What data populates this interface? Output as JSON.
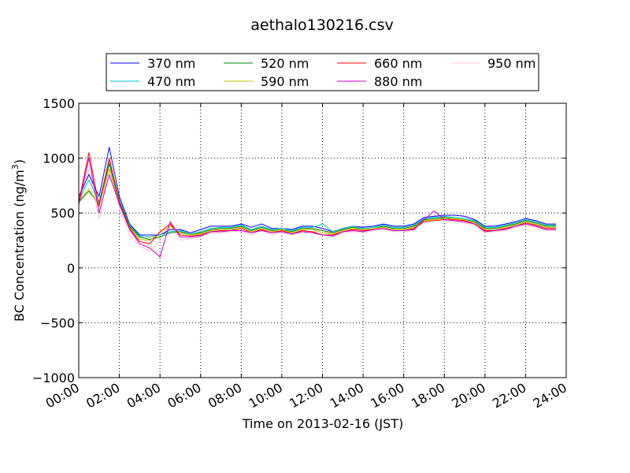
{
  "chart_data": {
    "type": "line",
    "title": "aethalo130216.csv",
    "xlabel": "Time on 2013-02-16 (JST)",
    "ylabel": "BC Concentration (ng/m",
    "ylabel_sup": "3",
    "ylabel_close": ")",
    "xlim": [
      0,
      24
    ],
    "ylim": [
      -1000,
      1500
    ],
    "grid": true,
    "legend_position": "top, above plot",
    "x_ticks": [
      0,
      2,
      4,
      6,
      8,
      10,
      12,
      14,
      16,
      18,
      20,
      22,
      24
    ],
    "x_tick_labels": [
      "00:00",
      "02:00",
      "04:00",
      "06:00",
      "08:00",
      "10:00",
      "12:00",
      "14:00",
      "16:00",
      "18:00",
      "20:00",
      "22:00",
      "24:00"
    ],
    "y_ticks": [
      -1000,
      -500,
      0,
      500,
      1000,
      1500
    ],
    "y_tick_labels": [
      "−1000",
      "−500",
      "0",
      "500",
      "1000",
      "1500"
    ],
    "x": [
      0.0,
      0.5,
      1.0,
      1.5,
      2.0,
      2.5,
      3.0,
      3.5,
      4.0,
      4.5,
      5.0,
      5.5,
      6.0,
      6.5,
      7.0,
      7.5,
      8.0,
      8.5,
      9.0,
      9.5,
      10.0,
      10.5,
      11.0,
      11.5,
      12.0,
      12.5,
      13.0,
      13.5,
      14.0,
      14.5,
      15.0,
      15.5,
      16.0,
      16.5,
      17.0,
      17.5,
      18.0,
      18.5,
      19.0,
      19.5,
      20.0,
      20.5,
      21.0,
      21.5,
      22.0,
      22.5,
      23.0,
      23.5
    ],
    "series": [
      {
        "name": "370 nm",
        "color": "#0000ff",
        "values": [
          650,
          850,
          650,
          1100,
          650,
          400,
          300,
          300,
          300,
          350,
          350,
          320,
          350,
          380,
          380,
          380,
          400,
          370,
          400,
          360,
          360,
          350,
          380,
          380,
          360,
          330,
          360,
          380,
          370,
          380,
          400,
          380,
          380,
          400,
          460,
          470,
          480,
          480,
          470,
          440,
          380,
          380,
          400,
          420,
          450,
          430,
          400,
          400
        ]
      },
      {
        "name": "470 nm",
        "color": "#00bfbf",
        "values": [
          620,
          800,
          600,
          980,
          620,
          390,
          290,
          280,
          300,
          330,
          340,
          310,
          330,
          360,
          370,
          370,
          390,
          350,
          380,
          350,
          360,
          340,
          370,
          370,
          400,
          330,
          360,
          380,
          360,
          370,
          390,
          370,
          370,
          390,
          450,
          460,
          470,
          460,
          450,
          430,
          370,
          370,
          390,
          410,
          440,
          420,
          390,
          390
        ]
      },
      {
        "name": "520 nm",
        "color": "#007f00",
        "values": [
          600,
          700,
          580,
          950,
          600,
          380,
          280,
          260,
          280,
          320,
          330,
          300,
          320,
          350,
          360,
          360,
          380,
          340,
          370,
          340,
          350,
          330,
          360,
          360,
          340,
          320,
          350,
          370,
          350,
          360,
          380,
          360,
          360,
          380,
          440,
          450,
          460,
          450,
          440,
          420,
          360,
          360,
          380,
          400,
          430,
          410,
          380,
          380
        ]
      },
      {
        "name": "590 nm",
        "color": "#bfbf00",
        "values": [
          610,
          720,
          570,
          900,
          590,
          370,
          260,
          250,
          320,
          380,
          320,
          300,
          310,
          340,
          350,
          350,
          370,
          330,
          360,
          330,
          350,
          320,
          350,
          350,
          320,
          310,
          340,
          360,
          350,
          360,
          370,
          350,
          350,
          370,
          430,
          440,
          450,
          450,
          440,
          410,
          350,
          350,
          370,
          390,
          420,
          400,
          370,
          370
        ]
      },
      {
        "name": "660 nm",
        "color": "#ff0000",
        "values": [
          600,
          1050,
          560,
          1000,
          600,
          360,
          240,
          220,
          330,
          400,
          300,
          290,
          300,
          330,
          340,
          340,
          360,
          320,
          350,
          320,
          340,
          310,
          340,
          330,
          300,
          300,
          330,
          350,
          340,
          350,
          360,
          340,
          340,
          360,
          420,
          430,
          440,
          440,
          430,
          400,
          340,
          340,
          360,
          380,
          410,
          390,
          360,
          360
        ]
      },
      {
        "name": "880 nm",
        "color": "#bf00bf",
        "values": [
          580,
          1000,
          500,
          850,
          580,
          350,
          220,
          180,
          100,
          420,
          280,
          280,
          290,
          330,
          330,
          340,
          340,
          320,
          340,
          320,
          330,
          310,
          330,
          320,
          300,
          290,
          330,
          340,
          330,
          350,
          360,
          340,
          340,
          350,
          440,
          520,
          440,
          430,
          420,
          400,
          330,
          340,
          350,
          380,
          400,
          380,
          350,
          350
        ]
      },
      {
        "name": "950 nm",
        "color": "#ffc0cb",
        "values": [
          560,
          900,
          450,
          950,
          550,
          300,
          200,
          150,
          250,
          400,
          250,
          270,
          280,
          320,
          320,
          330,
          330,
          300,
          350,
          300,
          320,
          300,
          330,
          320,
          350,
          280,
          320,
          330,
          320,
          340,
          350,
          330,
          330,
          340,
          430,
          480,
          430,
          420,
          410,
          390,
          320,
          330,
          340,
          370,
          390,
          370,
          340,
          340
        ]
      }
    ]
  }
}
